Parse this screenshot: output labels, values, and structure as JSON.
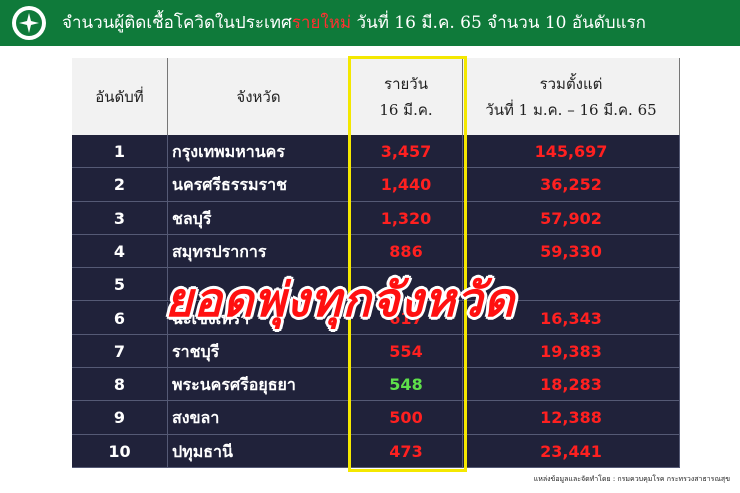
{
  "header": {
    "title_prefix": "จำนวนผู้ติดเชื้อโควิดในประเทศ",
    "title_highlight": "รายใหม่",
    "title_suffix": " วันที่ 16 มี.ค. 65 จำนวน 10 อันดับแรก"
  },
  "table": {
    "columns": [
      [
        "อันดับที่"
      ],
      [
        "จังหวัด"
      ],
      [
        "รายวัน",
        "16 มี.ค."
      ],
      [
        "รวมตั้งแต่",
        "วันที่ 1 ม.ค. – 16 มี.ค. 65"
      ]
    ],
    "rows": [
      {
        "rank": "1",
        "province": "กรุงเทพมหานคร",
        "daily": "3,457",
        "total": "145,697",
        "daily_color": "#ff2020"
      },
      {
        "rank": "2",
        "province": "นครศรีธรรมราช",
        "daily": "1,440",
        "total": "36,252",
        "daily_color": "#ff2020"
      },
      {
        "rank": "3",
        "province": "ชลบุรี",
        "daily": "1,320",
        "total": "57,902",
        "daily_color": "#ff2020"
      },
      {
        "rank": "4",
        "province": "สมุทรปราการ",
        "daily": "886",
        "total": "59,330",
        "daily_color": "#ff2020"
      },
      {
        "rank": "5",
        "province": null,
        "daily": null,
        "total": null,
        "daily_color": "#ff2020"
      },
      {
        "rank": "6",
        "province": "ฉะเชิงเทรา",
        "daily": "617",
        "total": "16,343",
        "daily_color": "#ff2020"
      },
      {
        "rank": "7",
        "province": "ราชบุรี",
        "daily": "554",
        "total": "19,383",
        "daily_color": "#ff2020"
      },
      {
        "rank": "8",
        "province": "พระนครศรีอยุธยา",
        "daily": "548",
        "total": "18,283",
        "daily_color": "#5ee04a"
      },
      {
        "rank": "9",
        "province": "สงขลา",
        "daily": "500",
        "total": "12,388",
        "daily_color": "#ff2020"
      },
      {
        "rank": "10",
        "province": "ปทุมธานี",
        "daily": "473",
        "total": "23,441",
        "daily_color": "#ff2020"
      }
    ]
  },
  "overlay": "ยอดพุ่งทุกจังหวัด",
  "footnote": "แหล่งข้อมูลและจัดทำโดย : กรมควบคุมโรค กระทรวงสาธารณสุข"
}
